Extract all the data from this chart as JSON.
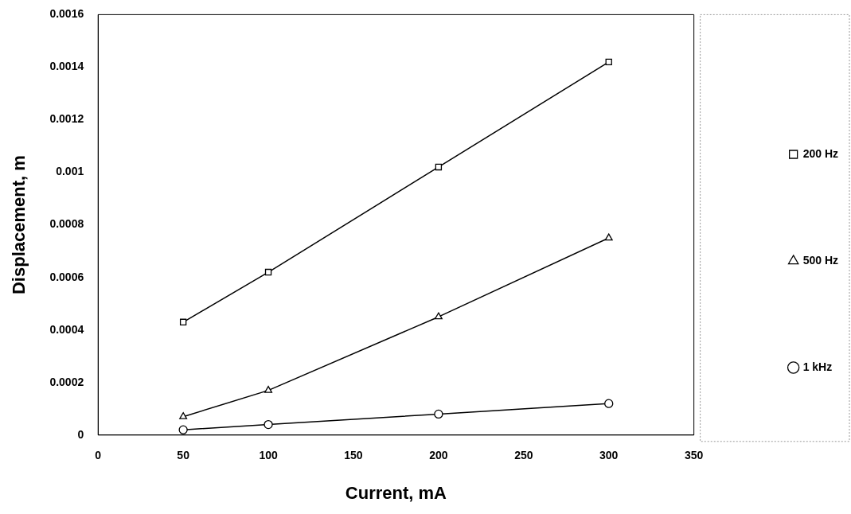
{
  "chart_data": {
    "type": "line",
    "xlabel": "Current, mA",
    "ylabel": "Displacement, m",
    "x": [
      50,
      100,
      200,
      300
    ],
    "series": [
      {
        "name": "200 Hz",
        "color": "#000000",
        "marker": "square",
        "values": [
          0.00043,
          0.00062,
          0.00102,
          0.00142
        ]
      },
      {
        "name": "500 Hz",
        "color": "#000000",
        "marker": "triangle",
        "values": [
          7e-05,
          0.00017,
          0.00045,
          0.00075
        ]
      },
      {
        "name": "1 kHz",
        "color": "#000000",
        "marker": "circle",
        "values": [
          2e-05,
          4e-05,
          8e-05,
          0.00012
        ]
      }
    ],
    "xlim": [
      0,
      350
    ],
    "xticks": [
      0,
      50,
      100,
      150,
      200,
      250,
      300,
      350
    ],
    "ylim": [
      0,
      0.0016
    ],
    "yticks": [
      0,
      0.0002,
      0.0004,
      0.0006,
      0.0008,
      0.001,
      0.0012,
      0.0014,
      0.0016
    ],
    "grid": false,
    "legend": "right",
    "line_style": "solid"
  }
}
